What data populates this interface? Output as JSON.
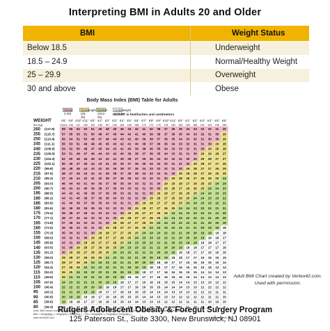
{
  "title": "Interpreting BMI in Adults 20 and Older",
  "key": {
    "headers": [
      "BMI",
      "Weight Status"
    ],
    "rows": [
      {
        "bmi": "Below 18.5",
        "status": "Underweight"
      },
      {
        "bmi": "18.5 – 24.9",
        "status": "Normal/Healthy Weight"
      },
      {
        "bmi": "25 – 29.9",
        "status": "Overweight"
      },
      {
        "bmi": "30 and above",
        "status": "Obese"
      }
    ]
  },
  "chart": {
    "title": "Body Mass Index (BMI) Table for Adults",
    "legend": [
      {
        "label": "Obese (>30)",
        "color": "#f4b6c8"
      },
      {
        "label": "Overweight (25-30)",
        "color": "#f3e68c"
      },
      {
        "label": "Normal (18.5-25)",
        "color": "#c6e58f"
      },
      {
        "label": "Underweight (<18.5)",
        "color": "#ffffff"
      }
    ],
    "height_title": "HEIGHT in feet/inches and centimeters",
    "weight_label": "WEIGHT",
    "weight_units": "lbs (kg)",
    "heights_ft": [
      "4'8\"",
      "4'9\"",
      "4'10\"",
      "4'11\"",
      "5'0\"",
      "5'1\"",
      "5'2\"",
      "5'3\"",
      "5'4\"",
      "5'5\"",
      "5'6\"",
      "5'7\"",
      "5'8\"",
      "5'9\"",
      "5'10\"",
      "5'11\"",
      "6'0\"",
      "6'1\"",
      "6'2\"",
      "6'3\"",
      "6'4\"",
      "6'5\"",
      "6'6\""
    ],
    "heights_cm": [
      "142cm",
      "145",
      "147",
      "150",
      "152",
      "155",
      "157",
      "160",
      "163",
      "165",
      "168",
      "170",
      "173",
      "175",
      "178",
      "180",
      "183",
      "185",
      "188",
      "191",
      "193",
      "196",
      "198"
    ],
    "weights_lbs": [
      260,
      255,
      250,
      245,
      240,
      235,
      230,
      225,
      220,
      215,
      210,
      205,
      200,
      195,
      190,
      185,
      180,
      175,
      170,
      165,
      160,
      155,
      150,
      145,
      140,
      135,
      130,
      125,
      120,
      115,
      110,
      105,
      100,
      95,
      90,
      85,
      80
    ],
    "weights_kg": [
      "(117.9)",
      "(115.7)",
      "(113.4)",
      "(111.1)",
      "(108.9)",
      "(106.6)",
      "(104.3)",
      "(102.1)",
      "(99.8)",
      "(97.5)",
      "(95.3)",
      "(93.0)",
      "(90.7)",
      "(88.5)",
      "(86.2)",
      "(83.9)",
      "(81.6)",
      "(79.4)",
      "(77.1)",
      "(74.8)",
      "(72.6)",
      "(70.3)",
      "(68.0)",
      "(65.8)",
      "(63.5)",
      "(61.2)",
      "(59.0)",
      "(56.7)",
      "(54.4)",
      "(52.2)",
      "(49.9)",
      "(47.6)",
      "(45.4)",
      "(43.1)",
      "(40.8)",
      "(38.6)",
      "(36.3)"
    ],
    "note": "Note: BMI values rounded to the nearest whole number. BMI categories based on CDC (Centers for Disease Control and Prevention) criteria.",
    "formula": "BMI = Weight[kg] / ( Height[m] x Height[m] ) = 703 x Weight[lb] / ( Height[in] x Height[in] )",
    "source": "www.vertex42.com",
    "copyright": "© 2009 Vertex42 LLC"
  },
  "credit": {
    "line1": "Adult BMI Chart created by Vertex42.com.",
    "line2": "Used with permission."
  },
  "footer": {
    "line1": "Rutgers Adolescent Obesity & Foregut Surgery Program",
    "line2": "125 Paterson St., Suite 3300, New Brunswick, NJ 08901"
  }
}
